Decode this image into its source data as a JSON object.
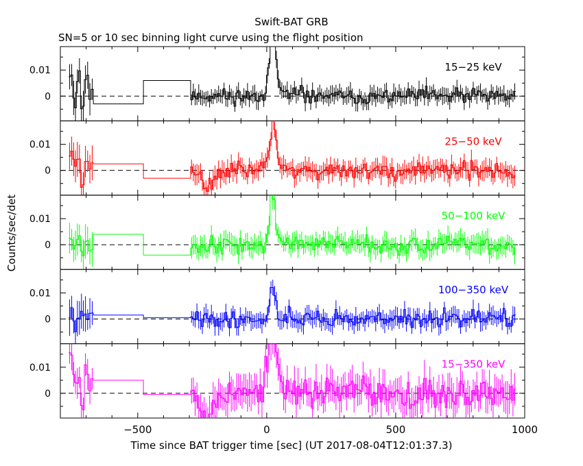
{
  "chart_data": {
    "type": "line",
    "title": "Swift-BAT GRB",
    "subtitle": "SN=5 or 10 sec binning light curve using the flight position",
    "xlabel": "Time since BAT trigger time [sec] (UT 2017-08-04T12:01:37.3)",
    "ylabel": "Counts/sec/det",
    "xlim": [
      -800,
      1000
    ],
    "ylim": [
      -0.0095,
      0.019
    ],
    "x_ticks": [
      -500,
      0,
      500,
      1000
    ],
    "x_tick_labels": [
      "−500",
      "0",
      "500",
      "1000"
    ],
    "y_ticks": [
      0,
      0.01
    ],
    "y_tick_labels": [
      "0",
      "0.01"
    ],
    "zero_line": "dashed",
    "grid": false,
    "panels": [
      {
        "name": "15−25 keV",
        "color": "#000000",
        "seed": 11,
        "noise": 0.0022,
        "peak": 0.026,
        "width": 16,
        "early": [
          0.009,
          -0.002,
          0.008,
          -0.004,
          0.007,
          0.001
        ],
        "plateau": [
          -0.003,
          0.006
        ],
        "dip": 0.0
      },
      {
        "name": "25−50 keV",
        "color": "#ff0000",
        "seed": 23,
        "noise": 0.0026,
        "peak": 0.021,
        "width": 18,
        "early": [
          0.007,
          0.003,
          0.006,
          -0.004,
          0.005,
          0.001
        ],
        "plateau": [
          0.0025,
          -0.003
        ],
        "dip": -0.006
      },
      {
        "name": "50−100 keV",
        "color": "#00ff00",
        "seed": 37,
        "noise": 0.0026,
        "peak": 0.019,
        "width": 14,
        "early": [
          0.004,
          0.001,
          0.003,
          -0.004,
          0.002,
          0.0
        ],
        "plateau": [
          0.004,
          -0.004
        ],
        "dip": 0.0
      },
      {
        "name": "100−350 keV",
        "color": "#0000ff",
        "seed": 41,
        "noise": 0.0024,
        "peak": 0.016,
        "width": 10,
        "early": [
          0.002,
          -0.002,
          0.001,
          0.002,
          -0.001,
          0.0
        ],
        "plateau": [
          0.0015,
          0.0005
        ],
        "dip": 0.0
      },
      {
        "name": "15−350 keV",
        "color": "#ff00ff",
        "seed": 53,
        "noise": 0.0045,
        "peak": 0.019,
        "width": 26,
        "early": [
          0.017,
          0.006,
          0.004,
          -0.004,
          0.009,
          0.003
        ],
        "plateau": [
          0.005,
          -0.0005
        ],
        "dip": -0.009
      }
    ]
  }
}
